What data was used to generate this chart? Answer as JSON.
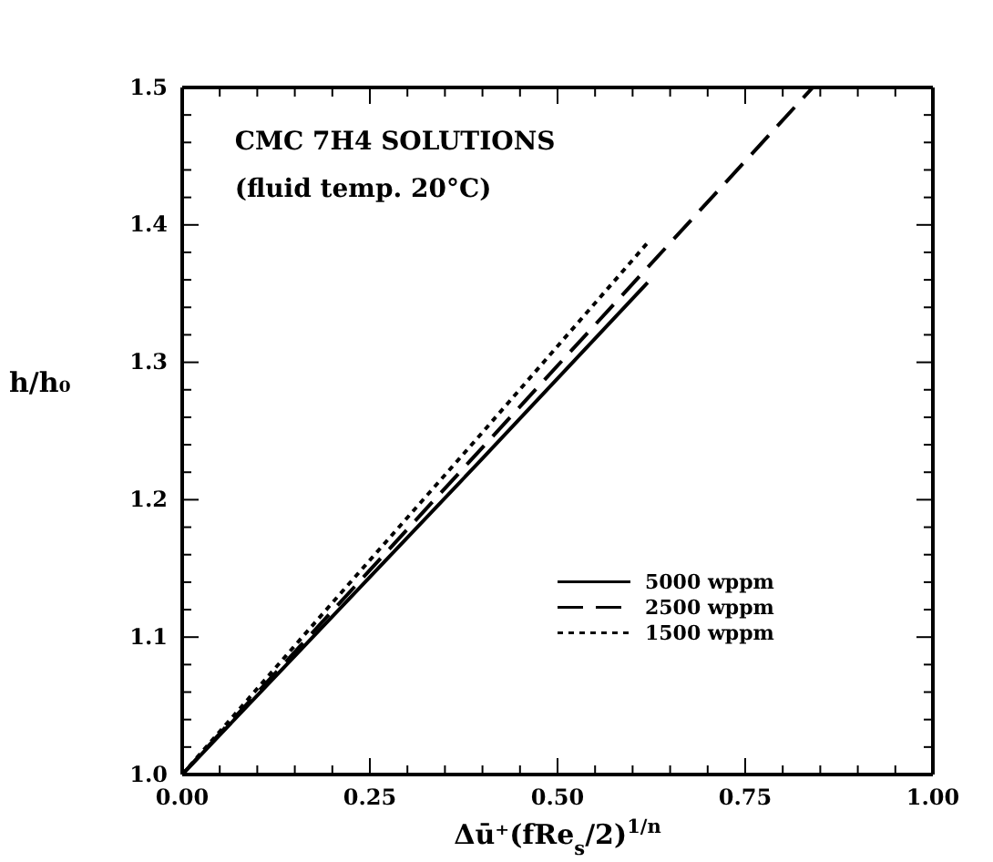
{
  "chart_data": {
    "type": "line",
    "title": "CMC 7H4 SOLUTIONS",
    "subtitle": "(fluid temp. 20°C)",
    "xlabel": "Δū⁺(fRe$_{s}$/2)$^{1/n}$",
    "ylabel": "h/h₀",
    "xlim": [
      0,
      1
    ],
    "ylim": [
      1,
      1.5
    ],
    "xticks": [
      {
        "value": 0,
        "label": "0.00"
      },
      {
        "value": 0.05,
        "label": null
      },
      {
        "value": 0.1,
        "label": null
      },
      {
        "value": 0.15,
        "label": null
      },
      {
        "value": 0.2,
        "label": null
      },
      {
        "value": 0.25,
        "label": "0.25"
      },
      {
        "value": 0.3,
        "label": null
      },
      {
        "value": 0.35,
        "label": null
      },
      {
        "value": 0.4,
        "label": null
      },
      {
        "value": 0.45,
        "label": null
      },
      {
        "value": 0.5,
        "label": "0.50"
      },
      {
        "value": 0.55,
        "label": null
      },
      {
        "value": 0.6,
        "label": null
      },
      {
        "value": 0.65,
        "label": null
      },
      {
        "value": 0.7,
        "label": null
      },
      {
        "value": 0.75,
        "label": "0.75"
      },
      {
        "value": 0.8,
        "label": null
      },
      {
        "value": 0.85,
        "label": null
      },
      {
        "value": 0.9,
        "label": null
      },
      {
        "value": 0.95,
        "label": null
      },
      {
        "value": 1,
        "label": "1.00"
      }
    ],
    "yticks": [
      {
        "value": 1,
        "label": "1.0"
      },
      {
        "value": 1.02,
        "label": null
      },
      {
        "value": 1.04,
        "label": null
      },
      {
        "value": 1.06,
        "label": null
      },
      {
        "value": 1.08,
        "label": null
      },
      {
        "value": 1.1,
        "label": "1.1"
      },
      {
        "value": 1.12,
        "label": null
      },
      {
        "value": 1.14,
        "label": null
      },
      {
        "value": 1.16,
        "label": null
      },
      {
        "value": 1.18,
        "label": null
      },
      {
        "value": 1.2,
        "label": "1.2"
      },
      {
        "value": 1.22,
        "label": null
      },
      {
        "value": 1.24,
        "label": null
      },
      {
        "value": 1.26,
        "label": null
      },
      {
        "value": 1.28,
        "label": null
      },
      {
        "value": 1.3,
        "label": "1.3"
      },
      {
        "value": 1.32,
        "label": null
      },
      {
        "value": 1.34,
        "label": null
      },
      {
        "value": 1.36,
        "label": null
      },
      {
        "value": 1.38,
        "label": null
      },
      {
        "value": 1.4,
        "label": "1.4"
      },
      {
        "value": 1.42,
        "label": null
      },
      {
        "value": 1.44,
        "label": null
      },
      {
        "value": 1.46,
        "label": null
      },
      {
        "value": 1.48,
        "label": null
      },
      {
        "value": 1.5,
        "label": "1.5"
      }
    ],
    "grid": false,
    "legend": "right",
    "marker": "none",
    "series": [
      {
        "name": "5000 wppm",
        "color": "#000000",
        "line_style": "solid",
        "x": [
          0,
          0.2,
          0.4,
          0.62
        ],
        "values": [
          1,
          1.115,
          1.23,
          1.358
        ]
      },
      {
        "name": "2500 wppm",
        "color": "#000000",
        "line_style": "dashed",
        "x": [
          0,
          0.2,
          0.4,
          0.62,
          0.84
        ],
        "values": [
          1,
          1.119,
          1.238,
          1.369,
          1.5
        ]
      },
      {
        "name": "1500 wppm",
        "color": "#000000",
        "line_style": "dotted",
        "x": [
          0,
          0.2,
          0.4,
          0.62
        ],
        "values": [
          1,
          1.125,
          1.249,
          1.387
        ]
      }
    ]
  }
}
